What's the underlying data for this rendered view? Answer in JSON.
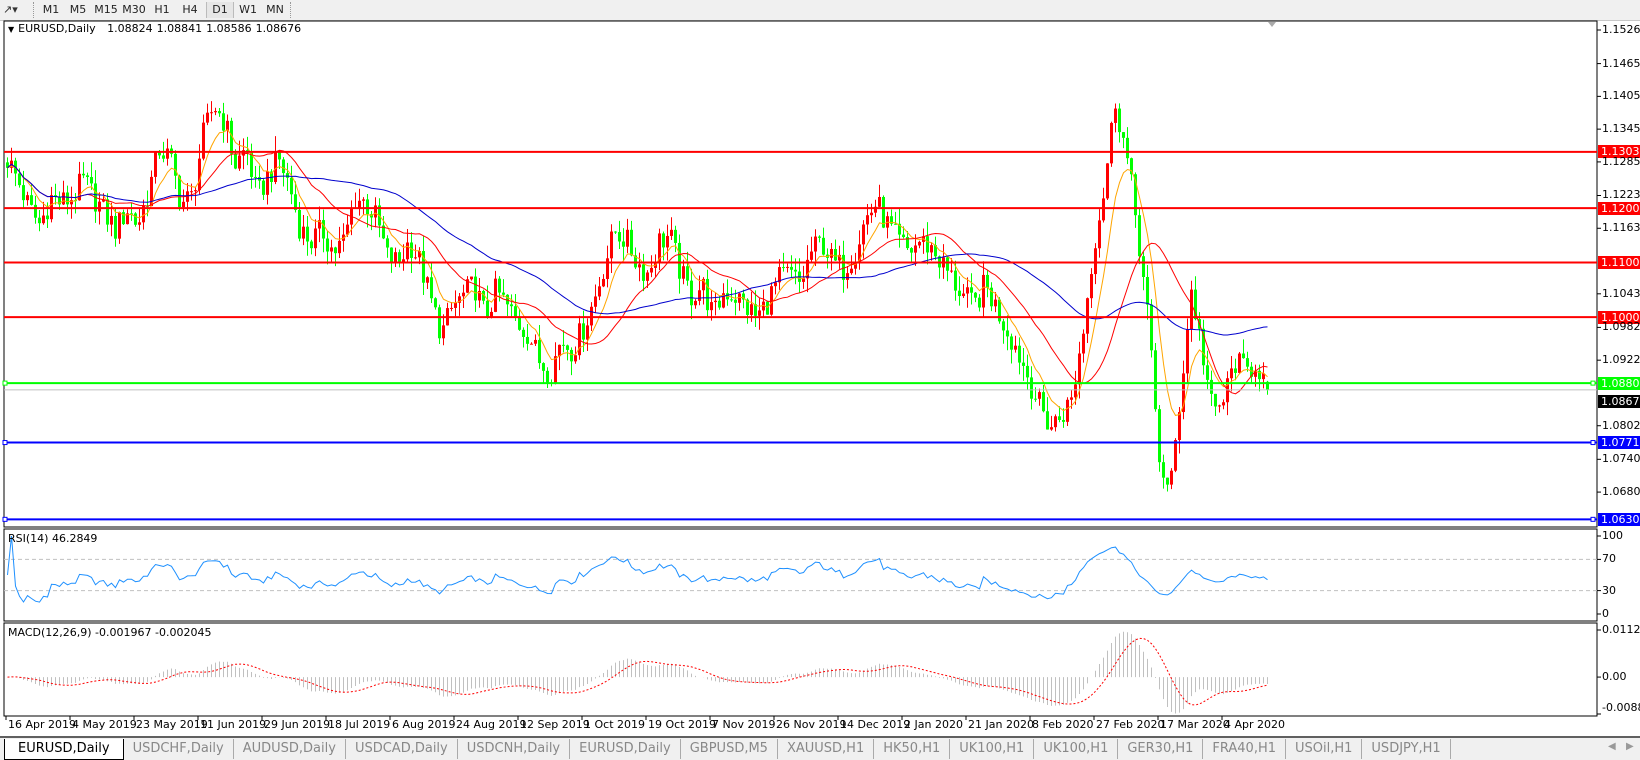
{
  "toolbar": {
    "timeframes": [
      "M1",
      "M5",
      "M15",
      "M30",
      "H1",
      "H4",
      "D1",
      "W1",
      "MN"
    ],
    "active": "D1",
    "tool_icon": "crosshair-pen-icon"
  },
  "chart": {
    "symbol_label": "EURUSD,Daily",
    "ohlc": {
      "open": "1.08824",
      "high": "1.08841",
      "low": "1.08586",
      "close": "1.08676"
    },
    "colors": {
      "bull": "#ff0000",
      "bear": "#00ff00",
      "ma_fast": "#ffa500",
      "ma_mid": "#ff0000",
      "ma_slow": "#0000cd"
    },
    "price_axis_ticks": [
      "1.15265",
      "1.14650",
      "1.14050",
      "1.13450",
      "1.12850",
      "1.12235",
      "1.11635",
      "1.10435",
      "1.09820",
      "1.09220",
      "1.08020",
      "1.07405",
      "1.06805",
      "1.06205"
    ],
    "levels": [
      {
        "price": "1.13034",
        "color": "#ff0000"
      },
      {
        "price": "1.12004",
        "color": "#ff0000"
      },
      {
        "price": "1.11009",
        "color": "#ff0000"
      },
      {
        "price": "1.10008",
        "color": "#ff0000"
      },
      {
        "price": "1.08800",
        "color": "#00ff00"
      },
      {
        "price": "1.07712",
        "color": "#0000ff"
      },
      {
        "price": "1.06306",
        "color": "#0000ff"
      }
    ],
    "current_price": "1.08676",
    "closes": [
      1.129,
      1.125,
      1.12,
      1.117,
      1.122,
      1.121,
      1.122,
      1.125,
      1.122,
      1.119,
      1.116,
      1.12,
      1.117,
      1.123,
      1.131,
      1.129,
      1.121,
      1.122,
      1.133,
      1.139,
      1.136,
      1.128,
      1.131,
      1.122,
      1.126,
      1.129,
      1.124,
      1.116,
      1.114,
      1.116,
      1.112,
      1.114,
      1.122,
      1.121,
      1.118,
      1.111,
      1.11,
      1.114,
      1.11,
      1.103,
      1.097,
      1.102,
      1.104,
      1.106,
      1.1,
      1.105,
      1.102,
      1.099,
      1.097,
      1.092,
      1.09,
      1.096,
      1.094,
      1.098,
      1.103,
      1.11,
      1.116,
      1.114,
      1.11,
      1.108,
      1.114,
      1.115,
      1.108,
      1.104,
      1.106,
      1.1,
      1.105,
      1.104,
      1.102,
      1.1,
      1.103,
      1.107,
      1.108,
      1.106,
      1.112,
      1.114,
      1.11,
      1.109,
      1.112,
      1.118,
      1.121,
      1.117,
      1.114,
      1.112,
      1.114,
      1.113,
      1.11,
      1.107,
      1.104,
      1.102,
      1.106,
      1.102,
      1.098,
      1.094,
      1.089,
      1.084,
      1.08,
      1.082,
      1.085,
      1.097,
      1.113,
      1.124,
      1.14,
      1.13,
      1.117,
      1.1,
      1.075,
      1.067,
      1.086,
      1.105,
      1.094,
      1.082,
      1.085,
      1.092,
      1.09,
      1.092,
      1.0868
    ]
  },
  "rsi": {
    "label": "RSI(14) 46.2849",
    "ticks": [
      "100",
      "70",
      "30",
      "0"
    ],
    "color": "#1e90ff"
  },
  "macd": {
    "label": "MACD(12,26,9) -0.001967 -0.002045",
    "ticks": [
      "0.011277",
      "0.00",
      "-0.008845"
    ]
  },
  "dates": [
    "16 Apr 2019",
    "4 May 2019",
    "23 May 2019",
    "11 Jun 2019",
    "29 Jun 2019",
    "18 Jul 2019",
    "6 Aug 2019",
    "24 Aug 2019",
    "12 Sep 2019",
    "1 Oct 2019",
    "19 Oct 2019",
    "7 Nov 2019",
    "26 Nov 2019",
    "14 Dec 2019",
    "2 Jan 2020",
    "21 Jan 2020",
    "8 Feb 2020",
    "27 Feb 2020",
    "17 Mar 2020",
    "4 Apr 2020"
  ],
  "tabs": [
    "EURUSD,Daily",
    "USDCHF,Daily",
    "AUDUSD,Daily",
    "USDCAD,Daily",
    "USDCNH,Daily",
    "EURUSD,Daily",
    "GBPUSD,M5",
    "XAUUSD,H1",
    "HK50,H1",
    "UK100,H1",
    "UK100,H1",
    "GER30,H1",
    "FRA40,H1",
    "USOil,H1",
    "USDJPY,H1"
  ],
  "active_tab": 0
}
